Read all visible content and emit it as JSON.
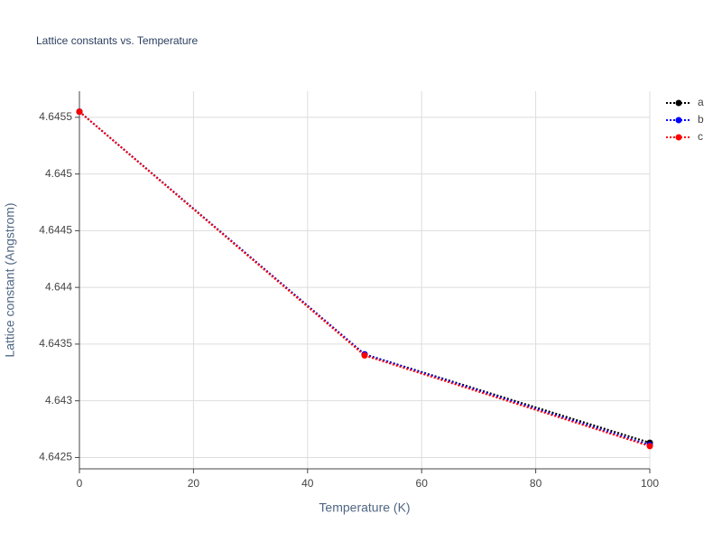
{
  "chart_data": {
    "type": "line",
    "title": "Lattice constants vs. Temperature",
    "xlabel": "Temperature (K)",
    "ylabel": "Lattice constant (Angstrom)",
    "x": [
      0,
      50,
      100
    ],
    "series": [
      {
        "name": "a",
        "color": "#000000",
        "values": [
          4.64555,
          4.64341,
          4.64263
        ]
      },
      {
        "name": "b",
        "color": "#0000ff",
        "values": [
          4.64555,
          4.64341,
          4.64261
        ]
      },
      {
        "name": "c",
        "color": "#ff0000",
        "values": [
          4.64555,
          4.6434,
          4.6426
        ]
      }
    ],
    "xlim": [
      0,
      100
    ],
    "xticks": [
      0,
      20,
      40,
      60,
      80,
      100
    ],
    "ylim": [
      4.6424,
      4.64573
    ],
    "yticks": [
      4.6425,
      4.643,
      4.6435,
      4.644,
      4.6445,
      4.645,
      4.6455
    ],
    "grid": true,
    "legend": "top-right"
  }
}
